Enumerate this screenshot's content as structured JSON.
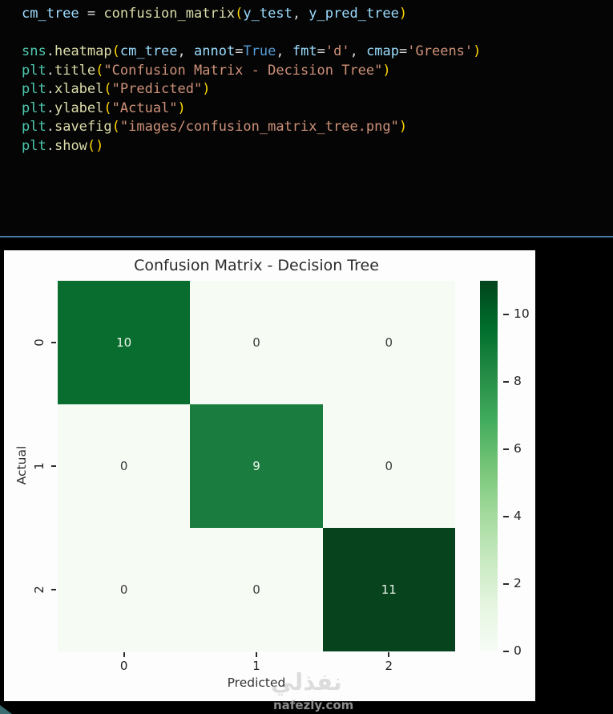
{
  "colors": {
    "background": "#000000",
    "editor_bg": "#050505",
    "divider": "#4a7aa5",
    "figure_bg": "#fdfdfd",
    "title_text": "#2a2a2a",
    "axis_text": "#333333",
    "tick_text": "#1f1f1f",
    "watermark": "#bcbcbc",
    "corner_triangle": "#3c6d71",
    "syntax": {
      "module": "#4EC9B0",
      "function": "#DCDCAA",
      "variable": "#9CDCFE",
      "operator": "#D4D4D4",
      "paren": "#FFD700",
      "keyword": "#569CD6",
      "string": "#CE9178"
    }
  },
  "code": {
    "lines": [
      {
        "tokens": [
          [
            "variable",
            "cm_tree"
          ],
          [
            "operator",
            " = "
          ],
          [
            "function",
            "confusion_matrix"
          ],
          [
            "paren",
            "("
          ],
          [
            "variable",
            "y_test"
          ],
          [
            "operator",
            ", "
          ],
          [
            "variable",
            "y_pred_tree"
          ],
          [
            "paren",
            ")"
          ]
        ]
      },
      {
        "tokens": []
      },
      {
        "tokens": [
          [
            "module",
            "sns"
          ],
          [
            "operator",
            "."
          ],
          [
            "function",
            "heatmap"
          ],
          [
            "paren",
            "("
          ],
          [
            "variable",
            "cm_tree"
          ],
          [
            "operator",
            ", "
          ],
          [
            "variable",
            "annot"
          ],
          [
            "operator",
            "="
          ],
          [
            "keyword",
            "True"
          ],
          [
            "operator",
            ", "
          ],
          [
            "variable",
            "fmt"
          ],
          [
            "operator",
            "="
          ],
          [
            "string",
            "'d'"
          ],
          [
            "operator",
            ", "
          ],
          [
            "variable",
            "cmap"
          ],
          [
            "operator",
            "="
          ],
          [
            "string",
            "'Greens'"
          ],
          [
            "paren",
            ")"
          ]
        ]
      },
      {
        "tokens": [
          [
            "module",
            "plt"
          ],
          [
            "operator",
            "."
          ],
          [
            "function",
            "title"
          ],
          [
            "paren",
            "("
          ],
          [
            "string",
            "\"Confusion Matrix - Decision Tree\""
          ],
          [
            "paren",
            ")"
          ]
        ]
      },
      {
        "tokens": [
          [
            "module",
            "plt"
          ],
          [
            "operator",
            "."
          ],
          [
            "function",
            "xlabel"
          ],
          [
            "paren",
            "("
          ],
          [
            "string",
            "\"Predicted\""
          ],
          [
            "paren",
            ")"
          ]
        ]
      },
      {
        "tokens": [
          [
            "module",
            "plt"
          ],
          [
            "operator",
            "."
          ],
          [
            "function",
            "ylabel"
          ],
          [
            "paren",
            "("
          ],
          [
            "string",
            "\"Actual\""
          ],
          [
            "paren",
            ")"
          ]
        ]
      },
      {
        "tokens": [
          [
            "module",
            "plt"
          ],
          [
            "operator",
            "."
          ],
          [
            "function",
            "savefig"
          ],
          [
            "paren",
            "("
          ],
          [
            "string",
            "\"images/confusion_matrix_tree.png\""
          ],
          [
            "paren",
            ")"
          ]
        ]
      },
      {
        "tokens": [
          [
            "module",
            "plt"
          ],
          [
            "operator",
            "."
          ],
          [
            "function",
            "show"
          ],
          [
            "paren",
            "("
          ],
          [
            "paren",
            ")"
          ]
        ]
      }
    ]
  },
  "chart_data": {
    "type": "heatmap",
    "title": "Confusion Matrix - Decision Tree",
    "xlabel": "Predicted",
    "ylabel": "Actual",
    "x_ticklabels": [
      "0",
      "1",
      "2"
    ],
    "y_ticklabels": [
      "0",
      "1",
      "2"
    ],
    "matrix": [
      [
        10,
        0,
        0
      ],
      [
        0,
        9,
        0
      ],
      [
        0,
        0,
        11
      ]
    ],
    "cmap": "Greens",
    "vmin": 0,
    "vmax": 11,
    "colorbar_ticks": [
      0,
      2,
      4,
      6,
      8,
      10
    ],
    "colorbar_position": "right",
    "cell_colors": [
      [
        "#0a6d30",
        "#f6fbf4",
        "#f6fbf4"
      ],
      [
        "#f6fbf4",
        "#1a7c3e",
        "#f6fbf4"
      ],
      [
        "#f6fbf4",
        "#f6fbf4",
        "#07431d"
      ]
    ],
    "annot_text_colors": [
      [
        "#eaf6ea",
        "#3d3d3d",
        "#3d3d3d"
      ],
      [
        "#3d3d3d",
        "#eaf6ea",
        "#3d3d3d"
      ],
      [
        "#3d3d3d",
        "#3d3d3d",
        "#eaf6ea"
      ]
    ],
    "colorbar_gradient": [
      "#f7fcf5",
      "#e5f5e0",
      "#c7e9c0",
      "#a1d99b",
      "#74c476",
      "#41ab5d",
      "#238b45",
      "#006d2c",
      "#00441b"
    ]
  },
  "watermark": {
    "arabic": "نفذلي",
    "domain": "nafezly.com"
  }
}
